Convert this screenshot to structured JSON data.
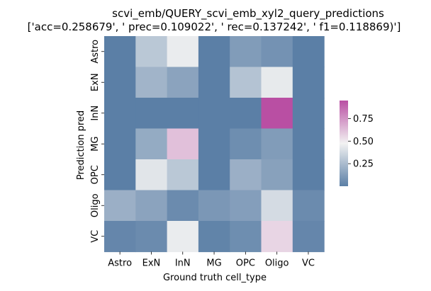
{
  "chart_data": {
    "type": "heatmap",
    "title_line1": "scvi_emb/QUERY_scvi_emb_xyl2_query_predictions",
    "title_line2": "['acc=0.258679', '  prec=0.109022', ' rec=0.137242', ' f1=0.118869)']",
    "xlabel": "Ground truth cell_type",
    "ylabel": "Prediction pred",
    "x_categories": [
      "Astro",
      "ExN",
      "InN",
      "MG",
      "OPC",
      "Oligo",
      "VC"
    ],
    "y_categories": [
      "Astro",
      "ExN",
      "InN",
      "MG",
      "OPC",
      "Oligo",
      "VC"
    ],
    "values": [
      [
        0.0,
        0.3,
        0.45,
        0.0,
        0.12,
        0.08,
        0.0
      ],
      [
        0.0,
        0.22,
        0.15,
        0.0,
        0.28,
        0.44,
        0.0
      ],
      [
        0.0,
        0.0,
        0.0,
        0.0,
        0.0,
        0.95,
        0.0
      ],
      [
        0.0,
        0.18,
        0.62,
        0.0,
        0.06,
        0.12,
        0.0
      ],
      [
        0.0,
        0.42,
        0.3,
        0.0,
        0.2,
        0.14,
        0.0
      ],
      [
        0.2,
        0.15,
        0.05,
        0.1,
        0.13,
        0.38,
        0.05
      ],
      [
        0.03,
        0.05,
        0.45,
        0.02,
        0.06,
        0.56,
        0.03
      ]
    ],
    "colorbar": {
      "ticks": [
        0.25,
        0.5,
        0.75
      ],
      "tick_labels": [
        "0.25",
        "0.50",
        "0.75"
      ],
      "vmin": 0.0,
      "vmax": 0.95,
      "low_color": "#5b7fa6",
      "mid_color": "#f2f2f2",
      "high_color": "#b94fa3"
    },
    "grid": false
  }
}
